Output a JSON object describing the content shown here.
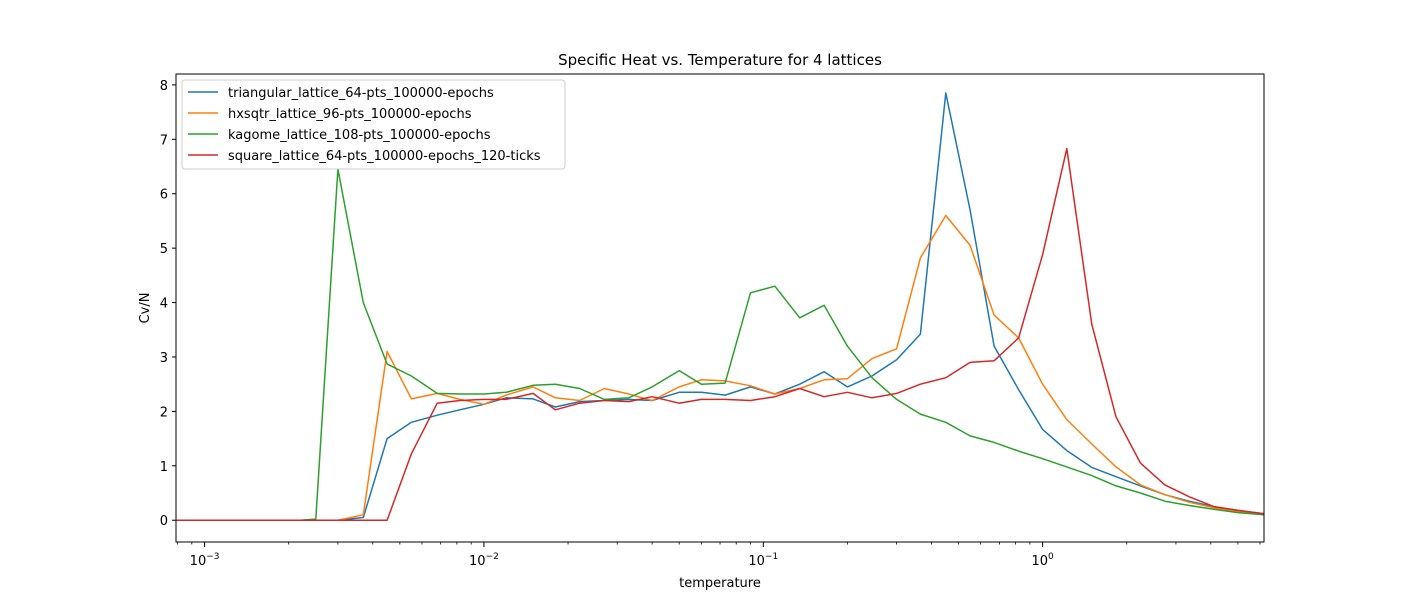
{
  "chart_data": {
    "type": "line",
    "title": "Specific Heat vs. Temperature for 4 lattices",
    "xlabel": "temperature",
    "ylabel": "Cv/N",
    "xscale": "log",
    "xlim": [
      0.00079,
      6.2
    ],
    "ylim": [
      -0.4,
      8.2
    ],
    "grid": false,
    "legend_position": "top-left",
    "yticks": [
      0,
      1,
      2,
      3,
      4,
      5,
      6,
      7,
      8
    ],
    "xticks": [
      {
        "value": 0.001,
        "base": "10",
        "exp": "−3"
      },
      {
        "value": 0.01,
        "base": "10",
        "exp": "−2"
      },
      {
        "value": 0.1,
        "base": "10",
        "exp": "−1"
      },
      {
        "value": 1,
        "base": "10",
        "exp": "0"
      }
    ],
    "x": [
      0.00079,
      0.001,
      0.0012,
      0.0015,
      0.0018,
      0.0022,
      0.0025,
      0.003,
      0.0037,
      0.0045,
      0.0055,
      0.0068,
      0.0082,
      0.01,
      0.012,
      0.015,
      0.018,
      0.022,
      0.027,
      0.033,
      0.04,
      0.05,
      0.06,
      0.073,
      0.09,
      0.11,
      0.135,
      0.165,
      0.2,
      0.245,
      0.3,
      0.365,
      0.45,
      0.55,
      0.67,
      0.82,
      1.0,
      1.22,
      1.5,
      1.83,
      2.24,
      2.74,
      3.35,
      4.1,
      5.0,
      6.2
    ],
    "series": [
      {
        "name": "triangular_lattice_64-pts_100000-epochs",
        "color": "#1f77b4",
        "values": [
          0,
          0,
          0,
          0,
          0,
          0,
          0,
          0,
          0.05,
          1.5,
          1.8,
          1.93,
          2.03,
          2.13,
          2.25,
          2.23,
          2.08,
          2.18,
          2.2,
          2.22,
          2.2,
          2.35,
          2.35,
          2.3,
          2.45,
          2.32,
          2.5,
          2.73,
          2.45,
          2.65,
          2.95,
          3.42,
          7.85,
          5.7,
          3.2,
          2.4,
          1.67,
          1.28,
          0.97,
          0.8,
          0.63,
          0.47,
          0.35,
          0.25,
          0.18,
          0.12
        ]
      },
      {
        "name": "hxsqtr_lattice_96-pts_100000-epochs",
        "color": "#ff7f0e",
        "values": [
          0,
          0,
          0,
          0,
          0,
          0,
          0,
          0,
          0.1,
          3.1,
          2.23,
          2.33,
          2.22,
          2.13,
          2.3,
          2.45,
          2.25,
          2.2,
          2.42,
          2.32,
          2.2,
          2.45,
          2.58,
          2.56,
          2.47,
          2.32,
          2.42,
          2.58,
          2.6,
          2.97,
          3.15,
          4.82,
          5.6,
          5.05,
          3.77,
          3.35,
          2.5,
          1.85,
          1.4,
          0.98,
          0.65,
          0.47,
          0.33,
          0.23,
          0.16,
          0.1
        ]
      },
      {
        "name": "kagome_lattice_108-pts_100000-epochs",
        "color": "#2ca02c",
        "values": [
          0,
          0,
          0,
          0,
          0,
          0,
          0.02,
          6.45,
          4.0,
          2.87,
          2.65,
          2.33,
          2.32,
          2.32,
          2.35,
          2.48,
          2.5,
          2.42,
          2.22,
          2.25,
          2.45,
          2.75,
          2.5,
          2.52,
          4.18,
          4.3,
          3.72,
          3.95,
          3.2,
          2.62,
          2.22,
          1.95,
          1.8,
          1.55,
          1.43,
          1.27,
          1.13,
          0.98,
          0.82,
          0.63,
          0.5,
          0.35,
          0.27,
          0.2,
          0.14,
          0.1
        ]
      },
      {
        "name": "square_lattice_64-pts_100000-epochs_120-ticks",
        "color": "#d62728",
        "values": [
          0,
          0,
          0,
          0,
          0,
          0,
          0,
          0,
          0,
          0,
          1.22,
          2.15,
          2.2,
          2.22,
          2.22,
          2.33,
          2.03,
          2.15,
          2.2,
          2.18,
          2.27,
          2.15,
          2.22,
          2.22,
          2.2,
          2.27,
          2.42,
          2.27,
          2.35,
          2.25,
          2.33,
          2.5,
          2.62,
          2.9,
          2.93,
          3.35,
          4.88,
          6.83,
          3.6,
          1.9,
          1.05,
          0.65,
          0.43,
          0.25,
          0.18,
          0.12
        ]
      }
    ]
  }
}
